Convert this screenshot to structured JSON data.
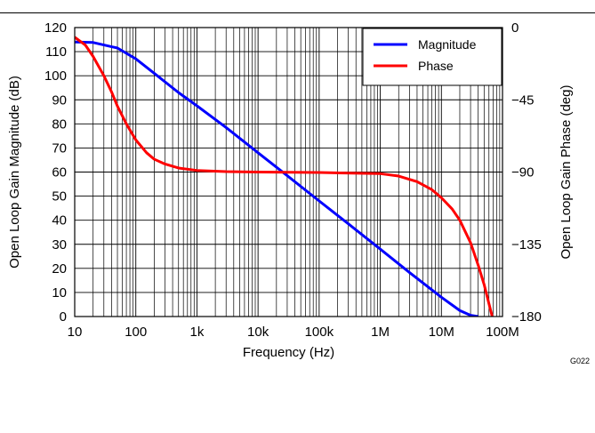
{
  "chart_data": {
    "type": "line",
    "title": "",
    "figure_id": "G022",
    "xlabel": "Frequency (Hz)",
    "ylabel_left": "Open Loop Gain Magnitude (dB)",
    "ylabel_right": "Open Loop Gain Phase (deg)",
    "x_scale": "log",
    "xlim": [
      10,
      100000000
    ],
    "ylim_left": [
      0,
      120
    ],
    "ylim_right": [
      -180,
      0
    ],
    "x_ticks": [
      {
        "value": 10,
        "label": "10"
      },
      {
        "value": 100,
        "label": "100"
      },
      {
        "value": 1000,
        "label": "1k"
      },
      {
        "value": 10000,
        "label": "10k"
      },
      {
        "value": 100000,
        "label": "100k"
      },
      {
        "value": 1000000,
        "label": "1M"
      },
      {
        "value": 10000000,
        "label": "10M"
      },
      {
        "value": 100000000,
        "label": "100M"
      }
    ],
    "y_ticks_left": [
      "0",
      "10",
      "20",
      "30",
      "40",
      "50",
      "60",
      "70",
      "80",
      "90",
      "100",
      "110",
      "120"
    ],
    "y_ticks_right": [
      "0",
      "−45",
      "−90",
      "−135",
      "−180"
    ],
    "grid": true,
    "legend_position": "top-right",
    "series": [
      {
        "name": "Magnitude",
        "axis": "left",
        "color": "#0000ff",
        "x": [
          10,
          20,
          50,
          100,
          200,
          500,
          1000,
          3000,
          10000,
          30000,
          100000,
          300000,
          1000000,
          3000000,
          10000000,
          20000000,
          30000000,
          40000000
        ],
        "y": [
          114,
          113.8,
          111.5,
          107,
          101,
          93,
          87.5,
          78.5,
          68,
          58.5,
          48,
          38.5,
          28,
          18.3,
          8,
          2.5,
          0.5,
          0
        ]
      },
      {
        "name": "Phase",
        "axis": "right",
        "color": "#ff0000",
        "x": [
          10,
          15,
          20,
          30,
          40,
          50,
          70,
          100,
          150,
          200,
          300,
          500,
          1000,
          3000,
          10000,
          100000,
          1000000,
          2000000,
          4000000,
          7000000,
          10000000,
          15000000,
          20000000,
          30000000,
          40000000,
          50000000,
          60000000,
          70000000
        ],
        "y": [
          -6,
          -11,
          -18,
          -30,
          -40,
          -49,
          -60,
          -70,
          -78,
          -82,
          -85,
          -87.5,
          -89,
          -89.7,
          -90,
          -90.3,
          -91,
          -92.5,
          -96,
          -101,
          -106,
          -113,
          -120,
          -134,
          -148,
          -160,
          -172,
          -182
        ]
      }
    ]
  }
}
